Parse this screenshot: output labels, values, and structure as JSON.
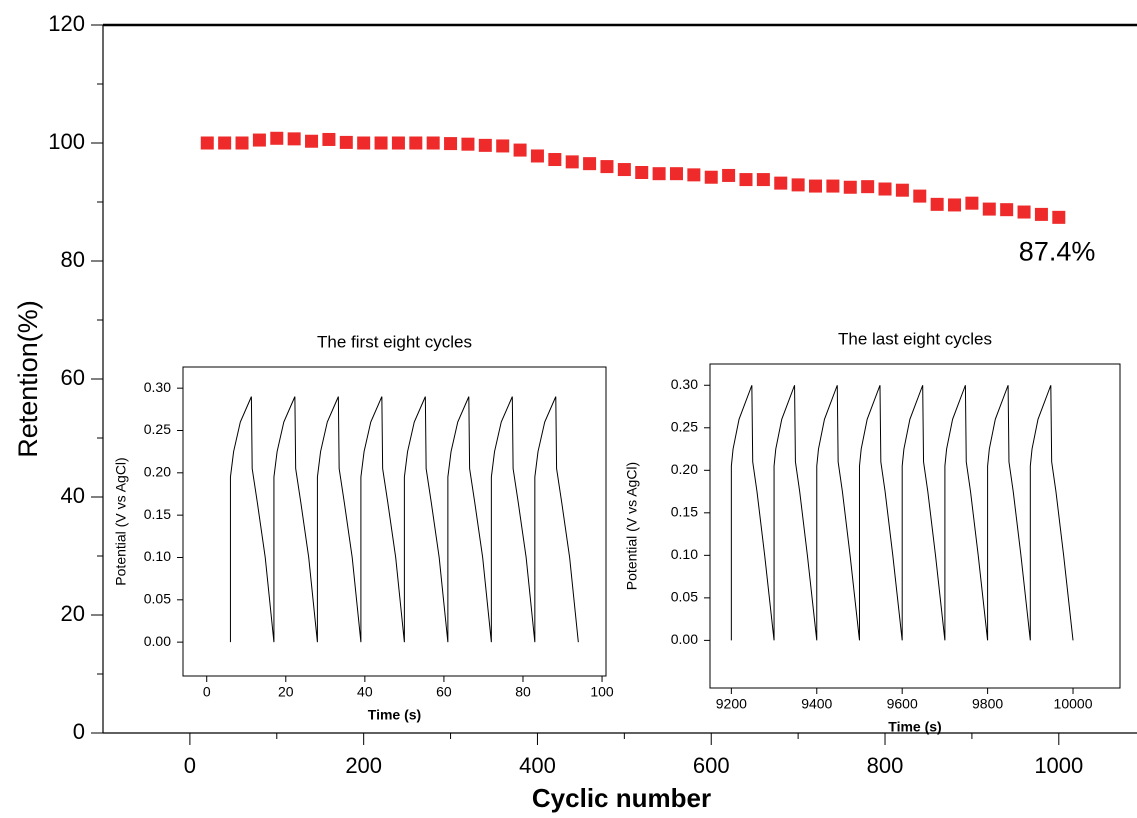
{
  "chart_data": [
    {
      "type": "scatter",
      "xlabel": "Cyclic number",
      "ylabel": "Retention(%)",
      "x": [
        20,
        40,
        60,
        80,
        100,
        120,
        140,
        160,
        180,
        200,
        220,
        240,
        260,
        280,
        300,
        320,
        340,
        360,
        380,
        400,
        420,
        440,
        460,
        480,
        500,
        520,
        540,
        560,
        580,
        600,
        620,
        640,
        660,
        680,
        700,
        720,
        740,
        760,
        780,
        800,
        820,
        840,
        860,
        880,
        900,
        920,
        940,
        960,
        980,
        1000
      ],
      "values": [
        100,
        100,
        100,
        100.5,
        100.8,
        100.7,
        100.3,
        100.6,
        100.1,
        100,
        100,
        100,
        100,
        100,
        99.9,
        99.8,
        99.6,
        99.5,
        98.8,
        97.8,
        97.2,
        96.8,
        96.5,
        96,
        95.5,
        95,
        94.8,
        94.8,
        94.6,
        94.2,
        94.5,
        93.8,
        93.8,
        93.2,
        92.9,
        92.7,
        92.7,
        92.5,
        92.6,
        92.2,
        92,
        91,
        89.6,
        89.5,
        89.8,
        88.8,
        88.7,
        88.3,
        87.9,
        87.4
      ],
      "color": "#ee2a2a",
      "marker": "square",
      "annotation": "87.4%",
      "xlim": [
        -100,
        1090
      ],
      "xticks": [
        0,
        200,
        400,
        600,
        800,
        1000
      ],
      "ylim": [
        0,
        120
      ],
      "yticks": [
        0,
        20,
        40,
        60,
        80,
        100,
        120
      ]
    },
    {
      "type": "line",
      "title": "The first eight cycles",
      "xlabel": "Time (s)",
      "ylabel": "Potential (V vs AgCl)",
      "x": [
        6,
        6,
        6.8,
        8.5,
        11.3,
        11.5,
        12.8,
        14.8,
        17,
        17,
        17.8,
        19.5,
        22.3,
        22.5,
        23.8,
        25.8,
        28,
        28,
        28.8,
        30.5,
        33.3,
        33.5,
        34.8,
        36.8,
        39,
        39,
        39.8,
        41.5,
        44.3,
        44.5,
        45.8,
        47.8,
        50,
        50,
        50.8,
        52.5,
        55.3,
        55.5,
        56.8,
        58.8,
        61,
        61,
        61.8,
        63.5,
        66.3,
        66.5,
        67.8,
        69.8,
        72,
        72,
        72.8,
        74.5,
        77.3,
        77.5,
        78.8,
        80.8,
        83,
        83,
        83.8,
        85.5,
        88.3,
        88.5,
        89.8,
        91.8,
        94
      ],
      "values": [
        0,
        0.195,
        0.225,
        0.26,
        0.29,
        0.205,
        0.165,
        0.1,
        0,
        0.195,
        0.225,
        0.26,
        0.29,
        0.205,
        0.165,
        0.1,
        0,
        0.195,
        0.225,
        0.26,
        0.29,
        0.205,
        0.165,
        0.1,
        0,
        0.195,
        0.225,
        0.26,
        0.29,
        0.205,
        0.165,
        0.1,
        0,
        0.195,
        0.225,
        0.26,
        0.29,
        0.205,
        0.165,
        0.1,
        0,
        0.195,
        0.225,
        0.26,
        0.29,
        0.205,
        0.165,
        0.1,
        0,
        0.195,
        0.225,
        0.26,
        0.29,
        0.205,
        0.165,
        0.1,
        0,
        0.195,
        0.225,
        0.26,
        0.29,
        0.205,
        0.165,
        0.1,
        0
      ],
      "color": "#000000",
      "xlim": [
        -6,
        101
      ],
      "xticks": [
        0,
        20,
        40,
        60,
        80,
        100
      ],
      "ylim": [
        -0.04,
        0.325
      ],
      "yticks": [
        {
          "value": 0,
          "label": "0.00"
        },
        {
          "value": 0.05,
          "label": "0.05"
        },
        {
          "value": 0.1,
          "label": "0.10"
        },
        {
          "value": 0.15,
          "label": "0.15"
        },
        {
          "value": 0.2,
          "label": "0.20"
        },
        {
          "value": 0.25,
          "label": "0.25"
        },
        {
          "value": 0.3,
          "label": "0.30"
        }
      ]
    },
    {
      "type": "line",
      "title": "The last eight cycles",
      "xlabel": "Time (s)",
      "ylabel": "Potential (V vs AgCl)",
      "x": [
        9200,
        9200,
        9204,
        9218,
        9248,
        9250,
        9260,
        9278,
        9300,
        9300,
        9304,
        9318,
        9348,
        9350,
        9360,
        9378,
        9400,
        9400,
        9404,
        9418,
        9448,
        9450,
        9460,
        9478,
        9500,
        9500,
        9504,
        9518,
        9548,
        9550,
        9560,
        9578,
        9600,
        9600,
        9604,
        9618,
        9648,
        9650,
        9660,
        9678,
        9700,
        9700,
        9704,
        9718,
        9748,
        9750,
        9760,
        9778,
        9800,
        9800,
        9804,
        9818,
        9848,
        9850,
        9860,
        9878,
        9900,
        9900,
        9904,
        9918,
        9948,
        9950,
        9960,
        9978,
        10000
      ],
      "values": [
        0,
        0.205,
        0.225,
        0.26,
        0.3,
        0.21,
        0.175,
        0.1,
        0,
        0.205,
        0.225,
        0.26,
        0.3,
        0.21,
        0.175,
        0.1,
        0,
        0.205,
        0.225,
        0.26,
        0.3,
        0.21,
        0.175,
        0.1,
        0,
        0.205,
        0.225,
        0.26,
        0.3,
        0.21,
        0.175,
        0.1,
        0,
        0.205,
        0.225,
        0.26,
        0.3,
        0.21,
        0.175,
        0.1,
        0,
        0.205,
        0.225,
        0.26,
        0.3,
        0.21,
        0.175,
        0.1,
        0,
        0.205,
        0.225,
        0.26,
        0.3,
        0.21,
        0.175,
        0.1,
        0,
        0.205,
        0.225,
        0.26,
        0.3,
        0.21,
        0.175,
        0.1,
        0
      ],
      "color": "#000000",
      "xlim": [
        9150,
        10110
      ],
      "xticks": [
        9200,
        9400,
        9600,
        9800,
        10000
      ],
      "ylim": [
        -0.056,
        0.325
      ],
      "yticks": [
        {
          "value": 0,
          "label": "0.00"
        },
        {
          "value": 0.05,
          "label": "0.05"
        },
        {
          "value": 0.1,
          "label": "0.10"
        },
        {
          "value": 0.15,
          "label": "0.15"
        },
        {
          "value": 0.2,
          "label": "0.20"
        },
        {
          "value": 0.25,
          "label": "0.25"
        },
        {
          "value": 0.3,
          "label": "0.30"
        }
      ]
    }
  ]
}
